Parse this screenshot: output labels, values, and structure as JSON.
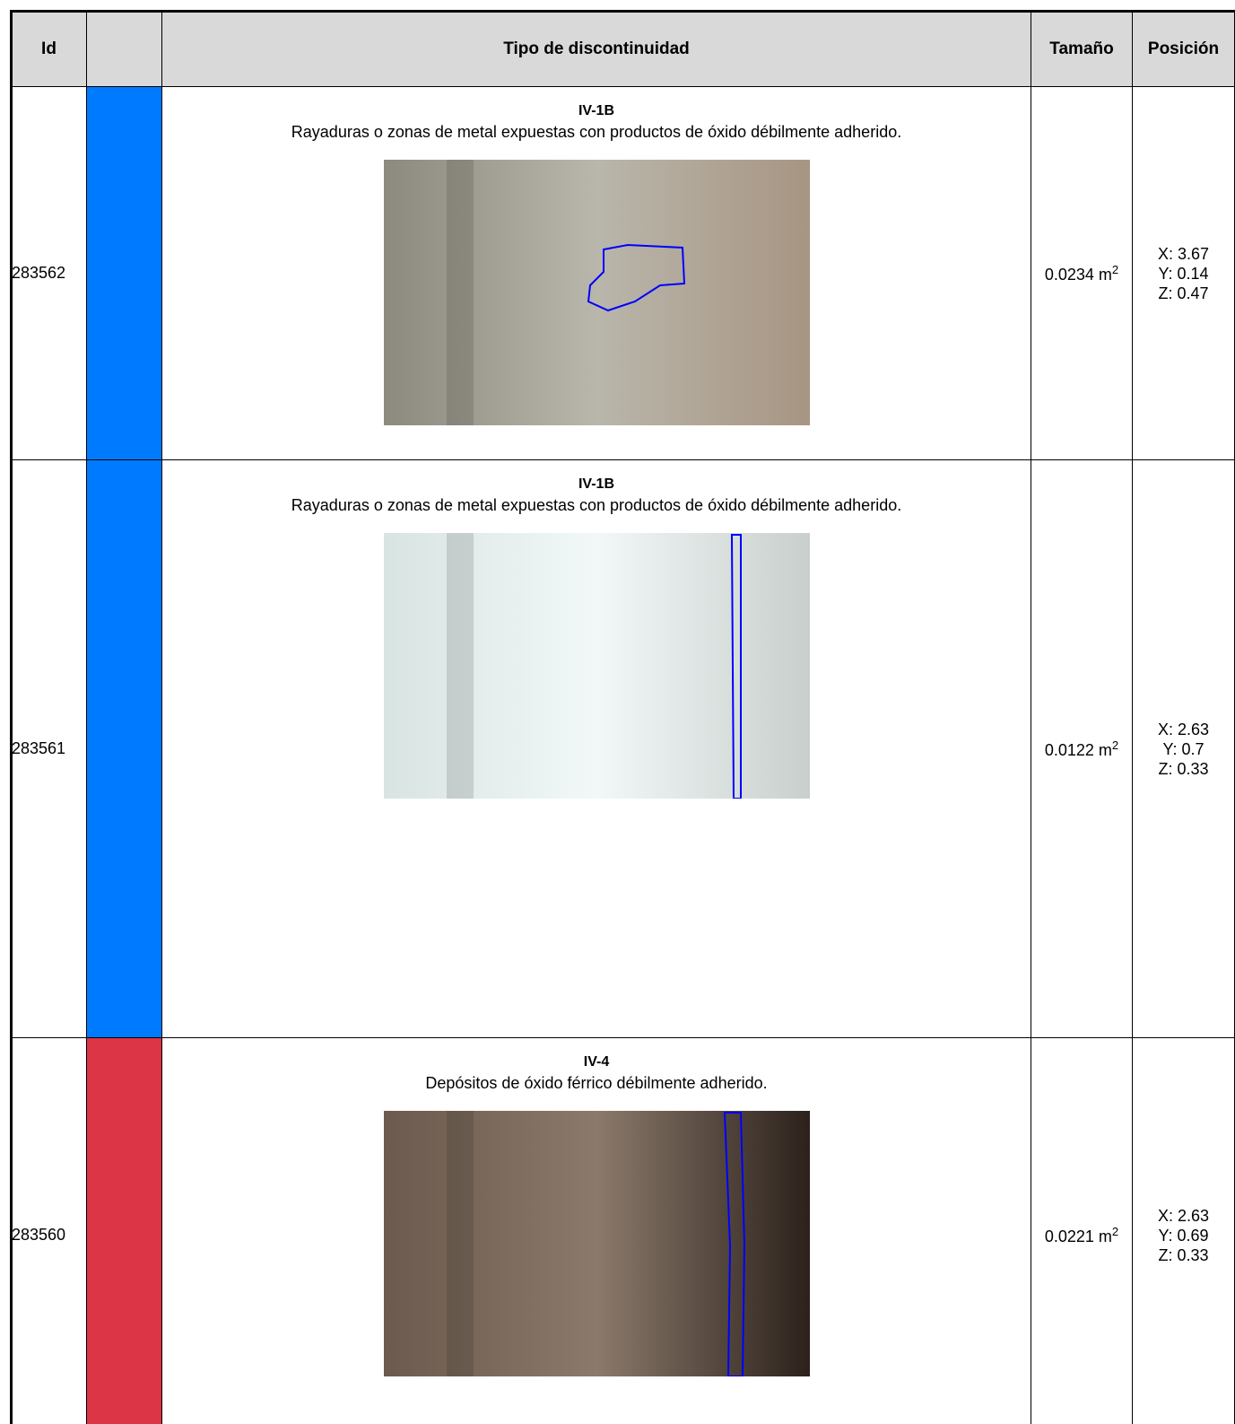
{
  "header": {
    "id": "Id",
    "type": "Tipo de discontinuidad",
    "size": "Tamaño",
    "position": "Posición"
  },
  "rows": [
    {
      "id": "283562",
      "color": "#007bff",
      "code": "IV-1B",
      "description": "Rayaduras o zonas de metal expuestas con productos de óxido débilmente adherido.",
      "size": "0.0234 m",
      "size_exp": "2",
      "position": [
        "X: 3.67",
        "Y: 0.14",
        "Z: 0.47"
      ]
    },
    {
      "id": "283561",
      "color": "#007bff",
      "code": "IV-1B",
      "description": "Rayaduras o zonas de metal expuestas con productos de óxido débilmente adherido.",
      "size": "0.0122 m",
      "size_exp": "2",
      "position": [
        "X: 2.63",
        "Y: 0.7",
        "Z: 0.33"
      ]
    },
    {
      "id": "283560",
      "color": "#dc3545",
      "code": "IV-4",
      "description": "Depósitos de óxido férrico débilmente adherido.",
      "size": "0.0221 m",
      "size_exp": "2",
      "position": [
        "X: 2.63",
        "Y: 0.69",
        "Z: 0.33"
      ]
    }
  ]
}
